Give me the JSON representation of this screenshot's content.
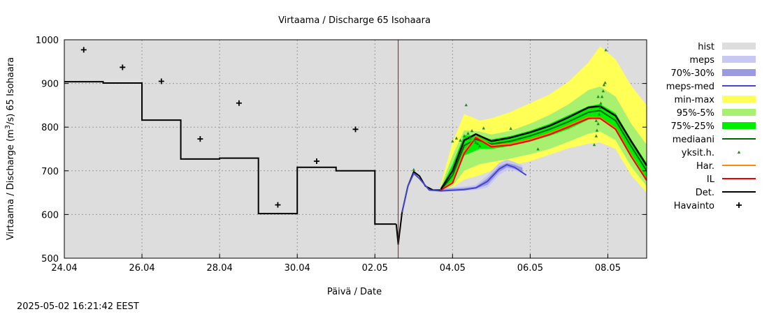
{
  "chart_data": {
    "type": "line",
    "title": "Virtaama / Discharge  65 Isohaara",
    "xlabel": "Päivä / Date",
    "ylabel_prefix": "Virtaama / Discharge (m",
    "ylabel_sup": "3",
    "ylabel_suffix": "/s)  65 Isohaara",
    "timestamp": "2025-05-02 16:21:42 EEST",
    "xlim": [
      0,
      15
    ],
    "ylim": [
      500,
      1000
    ],
    "grid": true,
    "legend_position": "right",
    "x_ticks": [
      {
        "x": 0,
        "label": "24.04"
      },
      {
        "x": 2,
        "label": "26.04"
      },
      {
        "x": 4,
        "label": "28.04"
      },
      {
        "x": 6,
        "label": "30.04"
      },
      {
        "x": 8,
        "label": "02.05"
      },
      {
        "x": 10,
        "label": "04.05"
      },
      {
        "x": 12,
        "label": "06.05"
      },
      {
        "x": 14,
        "label": "08.05"
      }
    ],
    "y_ticks": [
      500,
      600,
      700,
      800,
      900,
      1000
    ],
    "now_x": 8.6,
    "colors": {
      "hist": "#dddddd",
      "meps_band": "#c8c8f5",
      "meps_inner": "#9a9ae0",
      "meps_med": "#4444cc",
      "minmax": "#ffff55",
      "p95_5": "#a8f070",
      "p75_25": "#00ee00",
      "median": "#006600",
      "members": "#228B22",
      "har": "#ff8800",
      "il": "#ee0000",
      "det": "#000000",
      "havainto": "#000000",
      "now_line": "#cc0000"
    },
    "legend": [
      {
        "key": "hist",
        "label": "hist",
        "style": "band"
      },
      {
        "key": "meps_band",
        "label": "meps",
        "style": "band"
      },
      {
        "key": "meps_inner",
        "label": "70%-30%",
        "style": "band"
      },
      {
        "key": "meps_med",
        "label": "meps-med",
        "style": "line"
      },
      {
        "key": "minmax",
        "label": "min-max",
        "style": "band"
      },
      {
        "key": "p95_5",
        "label": "95%-5%",
        "style": "band"
      },
      {
        "key": "p75_25",
        "label": "75%-25%",
        "style": "band"
      },
      {
        "key": "median",
        "label": "mediaani",
        "style": "line"
      },
      {
        "key": "members",
        "label": "yksit.h.",
        "style": "dot"
      },
      {
        "key": "har",
        "label": "Har.",
        "style": "line"
      },
      {
        "key": "il",
        "label": "IL",
        "style": "line"
      },
      {
        "key": "det",
        "label": "Det.",
        "style": "line"
      },
      {
        "key": "havainto",
        "label": "Havainto",
        "style": "plus"
      }
    ],
    "havainto": [
      {
        "x": 0.5,
        "y": 977
      },
      {
        "x": 1.5,
        "y": 937
      },
      {
        "x": 2.5,
        "y": 905
      },
      {
        "x": 3.5,
        "y": 773
      },
      {
        "x": 4.5,
        "y": 855
      },
      {
        "x": 5.5,
        "y": 622
      },
      {
        "x": 6.5,
        "y": 722
      },
      {
        "x": 7.5,
        "y": 795
      }
    ],
    "history_steps": [
      {
        "x0": 0,
        "x1": 1,
        "y": 904
      },
      {
        "x0": 1,
        "x1": 2,
        "y": 901
      },
      {
        "x0": 2,
        "x1": 3,
        "y": 816
      },
      {
        "x0": 3,
        "x1": 4,
        "y": 727
      },
      {
        "x0": 4,
        "x1": 5,
        "y": 729
      },
      {
        "x0": 5,
        "x1": 6,
        "y": 602
      },
      {
        "x0": 6,
        "x1": 7,
        "y": 708
      },
      {
        "x0": 7,
        "x1": 8,
        "y": 700
      },
      {
        "x0": 8,
        "x1": 8.55,
        "y": 578
      }
    ],
    "forecast_common": [
      {
        "x": 8.55,
        "y": 578
      },
      {
        "x": 8.6,
        "y": 532
      },
      {
        "x": 8.7,
        "y": 605
      },
      {
        "x": 8.85,
        "y": 665
      },
      {
        "x": 9.0,
        "y": 698
      },
      {
        "x": 9.15,
        "y": 688
      },
      {
        "x": 9.3,
        "y": 665
      },
      {
        "x": 9.5,
        "y": 656
      },
      {
        "x": 9.7,
        "y": 656
      }
    ],
    "minmax_band": [
      {
        "x": 9.7,
        "lo": 656,
        "hi": 670
      },
      {
        "x": 10.0,
        "lo": 662,
        "hi": 765
      },
      {
        "x": 10.3,
        "lo": 680,
        "hi": 830
      },
      {
        "x": 10.7,
        "lo": 690,
        "hi": 815
      },
      {
        "x": 11.0,
        "lo": 700,
        "hi": 820
      },
      {
        "x": 11.5,
        "lo": 712,
        "hi": 835
      },
      {
        "x": 12.0,
        "lo": 722,
        "hi": 855
      },
      {
        "x": 12.5,
        "lo": 737,
        "hi": 875
      },
      {
        "x": 13.0,
        "lo": 752,
        "hi": 905
      },
      {
        "x": 13.5,
        "lo": 762,
        "hi": 948
      },
      {
        "x": 13.8,
        "lo": 765,
        "hi": 985
      },
      {
        "x": 14.2,
        "lo": 750,
        "hi": 955
      },
      {
        "x": 14.6,
        "lo": 690,
        "hi": 895
      },
      {
        "x": 15.0,
        "lo": 650,
        "hi": 850
      }
    ],
    "p95_5_band": [
      {
        "x": 9.7,
        "lo": 656,
        "hi": 664
      },
      {
        "x": 10.0,
        "lo": 665,
        "hi": 735
      },
      {
        "x": 10.3,
        "lo": 700,
        "hi": 793
      },
      {
        "x": 10.7,
        "lo": 715,
        "hi": 790
      },
      {
        "x": 11.0,
        "lo": 720,
        "hi": 783
      },
      {
        "x": 11.5,
        "lo": 728,
        "hi": 792
      },
      {
        "x": 12.0,
        "lo": 738,
        "hi": 808
      },
      {
        "x": 12.5,
        "lo": 750,
        "hi": 828
      },
      {
        "x": 13.0,
        "lo": 767,
        "hi": 853
      },
      {
        "x": 13.5,
        "lo": 785,
        "hi": 885
      },
      {
        "x": 13.8,
        "lo": 790,
        "hi": 893
      },
      {
        "x": 14.2,
        "lo": 770,
        "hi": 870
      },
      {
        "x": 14.6,
        "lo": 710,
        "hi": 808
      },
      {
        "x": 15.0,
        "lo": 665,
        "hi": 760
      }
    ],
    "p75_25_band": [
      {
        "x": 9.7,
        "lo": 656,
        "hi": 660
      },
      {
        "x": 10.0,
        "lo": 672,
        "hi": 715
      },
      {
        "x": 10.3,
        "lo": 735,
        "hi": 782
      },
      {
        "x": 10.7,
        "lo": 750,
        "hi": 780
      },
      {
        "x": 11.0,
        "lo": 750,
        "hi": 772
      },
      {
        "x": 11.5,
        "lo": 757,
        "hi": 780
      },
      {
        "x": 12.0,
        "lo": 767,
        "hi": 792
      },
      {
        "x": 12.5,
        "lo": 780,
        "hi": 808
      },
      {
        "x": 13.0,
        "lo": 796,
        "hi": 828
      },
      {
        "x": 13.5,
        "lo": 817,
        "hi": 848
      },
      {
        "x": 13.8,
        "lo": 822,
        "hi": 853
      },
      {
        "x": 14.2,
        "lo": 797,
        "hi": 832
      },
      {
        "x": 14.6,
        "lo": 738,
        "hi": 772
      },
      {
        "x": 15.0,
        "lo": 682,
        "hi": 718
      }
    ],
    "meps_band": [
      {
        "x": 9.7,
        "lo": 652,
        "hi": 660
      },
      {
        "x": 10.3,
        "lo": 654,
        "hi": 664
      },
      {
        "x": 10.6,
        "lo": 656,
        "hi": 668
      },
      {
        "x": 10.9,
        "lo": 662,
        "hi": 690
      },
      {
        "x": 11.2,
        "lo": 690,
        "hi": 718
      },
      {
        "x": 11.4,
        "lo": 702,
        "hi": 726
      },
      {
        "x": 11.6,
        "lo": 700,
        "hi": 720
      },
      {
        "x": 11.8,
        "lo": 694,
        "hi": 712
      }
    ],
    "meps_inner_band": [
      {
        "x": 9.7,
        "lo": 655,
        "hi": 658
      },
      {
        "x": 10.3,
        "lo": 657,
        "hi": 661
      },
      {
        "x": 10.6,
        "lo": 659,
        "hi": 664
      },
      {
        "x": 10.9,
        "lo": 668,
        "hi": 683
      },
      {
        "x": 11.2,
        "lo": 697,
        "hi": 710
      },
      {
        "x": 11.4,
        "lo": 708,
        "hi": 718
      },
      {
        "x": 11.6,
        "lo": 704,
        "hi": 714
      },
      {
        "x": 11.8,
        "lo": 697,
        "hi": 707
      }
    ],
    "meps_med": [
      {
        "x": 8.7,
        "y": 605
      },
      {
        "x": 8.85,
        "y": 665
      },
      {
        "x": 9.0,
        "y": 694
      },
      {
        "x": 9.15,
        "y": 682
      },
      {
        "x": 9.4,
        "y": 656
      },
      {
        "x": 9.7,
        "y": 654
      },
      {
        "x": 10.3,
        "y": 657
      },
      {
        "x": 10.6,
        "y": 661
      },
      {
        "x": 10.9,
        "y": 676
      },
      {
        "x": 11.2,
        "y": 704
      },
      {
        "x": 11.4,
        "y": 714
      },
      {
        "x": 11.6,
        "y": 708
      },
      {
        "x": 11.9,
        "y": 690
      }
    ],
    "median": [
      {
        "x": 9.7,
        "y": 656
      },
      {
        "x": 10.0,
        "y": 690
      },
      {
        "x": 10.3,
        "y": 758
      },
      {
        "x": 10.6,
        "y": 772
      },
      {
        "x": 11.0,
        "y": 761
      },
      {
        "x": 11.5,
        "y": 768
      },
      {
        "x": 12.0,
        "y": 780
      },
      {
        "x": 12.5,
        "y": 795
      },
      {
        "x": 13.0,
        "y": 813
      },
      {
        "x": 13.5,
        "y": 834
      },
      {
        "x": 13.8,
        "y": 838
      },
      {
        "x": 14.2,
        "y": 815
      },
      {
        "x": 14.6,
        "y": 756
      },
      {
        "x": 15.0,
        "y": 700
      }
    ],
    "har": [
      {
        "x": 9.7,
        "y": 656
      },
      {
        "x": 10.0,
        "y": 675
      },
      {
        "x": 10.3,
        "y": 745
      },
      {
        "x": 10.6,
        "y": 778
      },
      {
        "x": 11.0,
        "y": 758
      },
      {
        "x": 11.5,
        "y": 762
      },
      {
        "x": 12.0,
        "y": 772
      },
      {
        "x": 12.5,
        "y": 786
      },
      {
        "x": 13.0,
        "y": 804
      },
      {
        "x": 13.5,
        "y": 823
      },
      {
        "x": 13.8,
        "y": 822
      },
      {
        "x": 14.2,
        "y": 797
      },
      {
        "x": 14.6,
        "y": 735
      },
      {
        "x": 15.0,
        "y": 680
      }
    ],
    "il": [
      {
        "x": 9.7,
        "y": 656
      },
      {
        "x": 10.0,
        "y": 672
      },
      {
        "x": 10.3,
        "y": 740
      },
      {
        "x": 10.6,
        "y": 776
      },
      {
        "x": 11.0,
        "y": 755
      },
      {
        "x": 11.5,
        "y": 759
      },
      {
        "x": 12.0,
        "y": 769
      },
      {
        "x": 12.5,
        "y": 783
      },
      {
        "x": 13.0,
        "y": 801
      },
      {
        "x": 13.5,
        "y": 820
      },
      {
        "x": 13.8,
        "y": 820
      },
      {
        "x": 14.2,
        "y": 795
      },
      {
        "x": 14.6,
        "y": 733
      },
      {
        "x": 15.0,
        "y": 678
      }
    ],
    "det": [
      {
        "x": 9.7,
        "y": 658
      },
      {
        "x": 10.0,
        "y": 700
      },
      {
        "x": 10.3,
        "y": 770
      },
      {
        "x": 10.6,
        "y": 784
      },
      {
        "x": 11.0,
        "y": 768
      },
      {
        "x": 11.5,
        "y": 776
      },
      {
        "x": 12.0,
        "y": 788
      },
      {
        "x": 12.5,
        "y": 803
      },
      {
        "x": 13.0,
        "y": 823
      },
      {
        "x": 13.5,
        "y": 845
      },
      {
        "x": 13.8,
        "y": 848
      },
      {
        "x": 14.2,
        "y": 826
      },
      {
        "x": 14.6,
        "y": 768
      },
      {
        "x": 15.0,
        "y": 712
      }
    ],
    "members": [
      {
        "x": 9.0,
        "y": 703
      },
      {
        "x": 10.0,
        "y": 768
      },
      {
        "x": 10.1,
        "y": 775
      },
      {
        "x": 10.2,
        "y": 770
      },
      {
        "x": 10.3,
        "y": 780
      },
      {
        "x": 10.35,
        "y": 851
      },
      {
        "x": 10.4,
        "y": 786
      },
      {
        "x": 10.45,
        "y": 775
      },
      {
        "x": 10.5,
        "y": 792
      },
      {
        "x": 10.55,
        "y": 770
      },
      {
        "x": 10.6,
        "y": 765
      },
      {
        "x": 10.65,
        "y": 762
      },
      {
        "x": 10.7,
        "y": 757
      },
      {
        "x": 10.8,
        "y": 798
      },
      {
        "x": 11.5,
        "y": 797
      },
      {
        "x": 12.2,
        "y": 750
      },
      {
        "x": 13.65,
        "y": 760
      },
      {
        "x": 13.7,
        "y": 780
      },
      {
        "x": 13.72,
        "y": 793
      },
      {
        "x": 13.75,
        "y": 808
      },
      {
        "x": 13.78,
        "y": 830
      },
      {
        "x": 13.8,
        "y": 845
      },
      {
        "x": 13.82,
        "y": 855
      },
      {
        "x": 13.85,
        "y": 870
      },
      {
        "x": 13.88,
        "y": 883
      },
      {
        "x": 13.9,
        "y": 897
      },
      {
        "x": 13.93,
        "y": 902
      },
      {
        "x": 13.75,
        "y": 870
      },
      {
        "x": 13.7,
        "y": 815
      },
      {
        "x": 13.95,
        "y": 977
      }
    ]
  }
}
